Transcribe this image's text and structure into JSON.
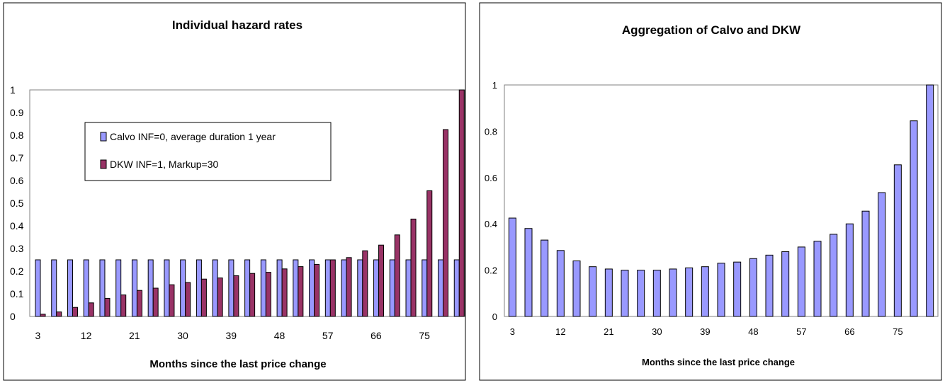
{
  "colors": {
    "calvo": "#9999ff",
    "dkw": "#993366",
    "outline": "#000000"
  },
  "chart_data": [
    {
      "type": "bar",
      "title": "Individual hazard rates",
      "xlabel": "Months since the last price change",
      "ylabel": "",
      "ylim": [
        0,
        1
      ],
      "yticks": [
        "0",
        "0.1",
        "0.2",
        "0.3",
        "0.4",
        "0.5",
        "0.6",
        "0.7",
        "0.8",
        "0.9",
        "1"
      ],
      "x": [
        3,
        6,
        9,
        12,
        15,
        18,
        21,
        24,
        27,
        30,
        33,
        36,
        39,
        42,
        45,
        48,
        51,
        54,
        57,
        60,
        63,
        66,
        69,
        72,
        75,
        78,
        81
      ],
      "xtick_labels": [
        "3",
        "12",
        "21",
        "30",
        "39",
        "48",
        "57",
        "66",
        "75"
      ],
      "legend": "inside-upper-left",
      "series": [
        {
          "name": "Calvo INF=0, average duration 1 year",
          "values": [
            0.25,
            0.25,
            0.25,
            0.25,
            0.25,
            0.25,
            0.25,
            0.25,
            0.25,
            0.25,
            0.25,
            0.25,
            0.25,
            0.25,
            0.25,
            0.25,
            0.25,
            0.25,
            0.25,
            0.25,
            0.25,
            0.25,
            0.25,
            0.25,
            0.25,
            0.25,
            0.25
          ]
        },
        {
          "name": "DKW INF=1, Markup=30",
          "values": [
            0.01,
            0.02,
            0.04,
            0.06,
            0.08,
            0.095,
            0.115,
            0.125,
            0.14,
            0.15,
            0.165,
            0.17,
            0.18,
            0.19,
            0.195,
            0.21,
            0.22,
            0.23,
            0.25,
            0.26,
            0.29,
            0.315,
            0.36,
            0.43,
            0.555,
            0.825,
            1.0
          ]
        }
      ]
    },
    {
      "type": "bar",
      "title": "Aggregation of  Calvo and DKW",
      "xlabel": "Months since the last price change",
      "ylabel": "",
      "ylim": [
        0,
        1
      ],
      "yticks": [
        "0",
        "0.2",
        "0.4",
        "0.6",
        "0.8",
        "1"
      ],
      "x": [
        3,
        6,
        9,
        12,
        15,
        18,
        21,
        24,
        27,
        30,
        33,
        36,
        39,
        42,
        45,
        48,
        51,
        54,
        57,
        60,
        63,
        66,
        69,
        72,
        75,
        78,
        81
      ],
      "xtick_labels": [
        "3",
        "12",
        "21",
        "30",
        "39",
        "48",
        "57",
        "66",
        "75"
      ],
      "series": [
        {
          "values": [
            0.425,
            0.38,
            0.33,
            0.285,
            0.24,
            0.215,
            0.205,
            0.2,
            0.2,
            0.2,
            0.205,
            0.21,
            0.215,
            0.23,
            0.235,
            0.25,
            0.265,
            0.28,
            0.3,
            0.325,
            0.355,
            0.4,
            0.455,
            0.535,
            0.655,
            0.845,
            1.0
          ]
        }
      ]
    }
  ]
}
